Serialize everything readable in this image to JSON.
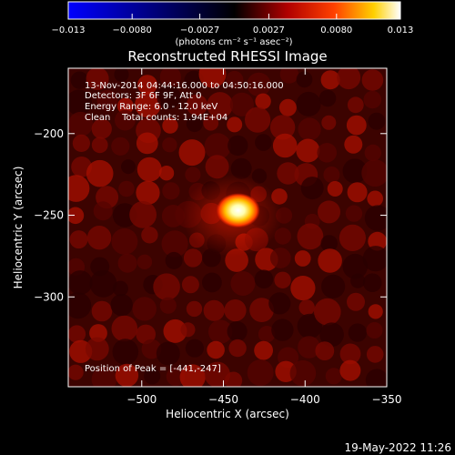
{
  "chart_data": {
    "type": "heatmap",
    "title": "Reconstructed RHESSI Image",
    "xlabel": "Heliocentric X (arcsec)",
    "ylabel": "Heliocentric Y (arcsec)",
    "xlim": [
      -545,
      -350
    ],
    "ylim": [
      -355,
      -160
    ],
    "x_ticks": [
      -500,
      -450,
      -400,
      -350
    ],
    "x_tick_labels": [
      "−500",
      "−450",
      "−400",
      "−350"
    ],
    "y_ticks": [
      -200,
      -250,
      -300
    ],
    "y_tick_labels": [
      "−200",
      "−250",
      "−300"
    ],
    "annotations": [
      "13-Nov-2014 04:44:16.000 to 04:50:16.000",
      "Detectors: 3F 6F 9F, Att 0",
      "Energy Range: 6.0 - 12.0 keV",
      "Clean    Total counts: 1.94E+04"
    ],
    "peak_label": "Position of Peak = [-441,-247]",
    "peak": [
      -441,
      -247
    ],
    "colorbar": {
      "range": [
        -0.013,
        0.013
      ],
      "ticks": [
        -0.013,
        -0.008,
        -0.0027,
        0.0027,
        0.008,
        0.013
      ],
      "tick_labels": [
        "−0.013",
        "−0.0080",
        "−0.0027",
        "0.0027",
        "0.0080",
        "0.013"
      ],
      "units": "(photons cm⁻² s⁻¹ asec⁻²)",
      "colormap": [
        "#0000ff",
        "#000000",
        "#ff0000",
        "#ffff00",
        "#ffffff"
      ]
    },
    "grid": false
  },
  "footer": {
    "date": "19-May-2022 11:26"
  }
}
